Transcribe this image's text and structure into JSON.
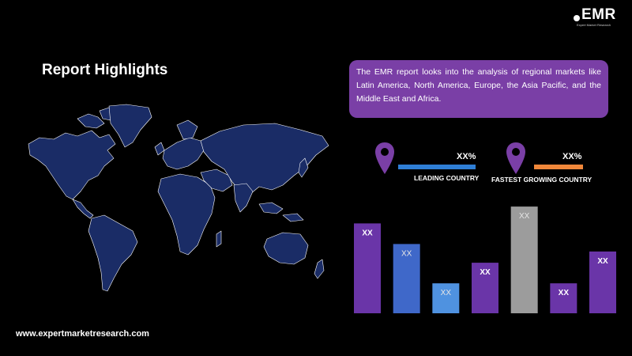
{
  "logo": {
    "text": "EMR",
    "tagline": "Expert Market Research"
  },
  "title": "Report Highlights",
  "summary": "The EMR report looks into the analysis of regional markets like Latin America, North America, Europe, the Asia Pacific, and the Middle East and Africa.",
  "stats": {
    "leading": {
      "value": "XX%",
      "label": "LEADING COUNTRY",
      "color": "#2f7fd6",
      "pin_color": "#7a3fa6"
    },
    "fastest": {
      "value": "XX%",
      "label": "FASTEST GROWING COUNTRY",
      "color": "#f0873a",
      "pin_color": "#7a3fa6"
    }
  },
  "chart_data": {
    "type": "bar",
    "categories": [
      "",
      "",
      "",
      "",
      "",
      "",
      ""
    ],
    "values": [
      4.8,
      3.7,
      1.6,
      2.7,
      5.7,
      1.6,
      3.3
    ],
    "labels": [
      "XX",
      "XX",
      "XX",
      "XX",
      "XX",
      "XX",
      "XX"
    ],
    "colors": [
      "#6a35a8",
      "#3f68c9",
      "#4f92e0",
      "#6a35a8",
      "#9c9c9c",
      "#6a35a8",
      "#6a35a8"
    ],
    "ylim": [
      0,
      6
    ],
    "grid": false
  },
  "footer": "www.expertmarketresearch.com",
  "map_color": "#1a2c66"
}
